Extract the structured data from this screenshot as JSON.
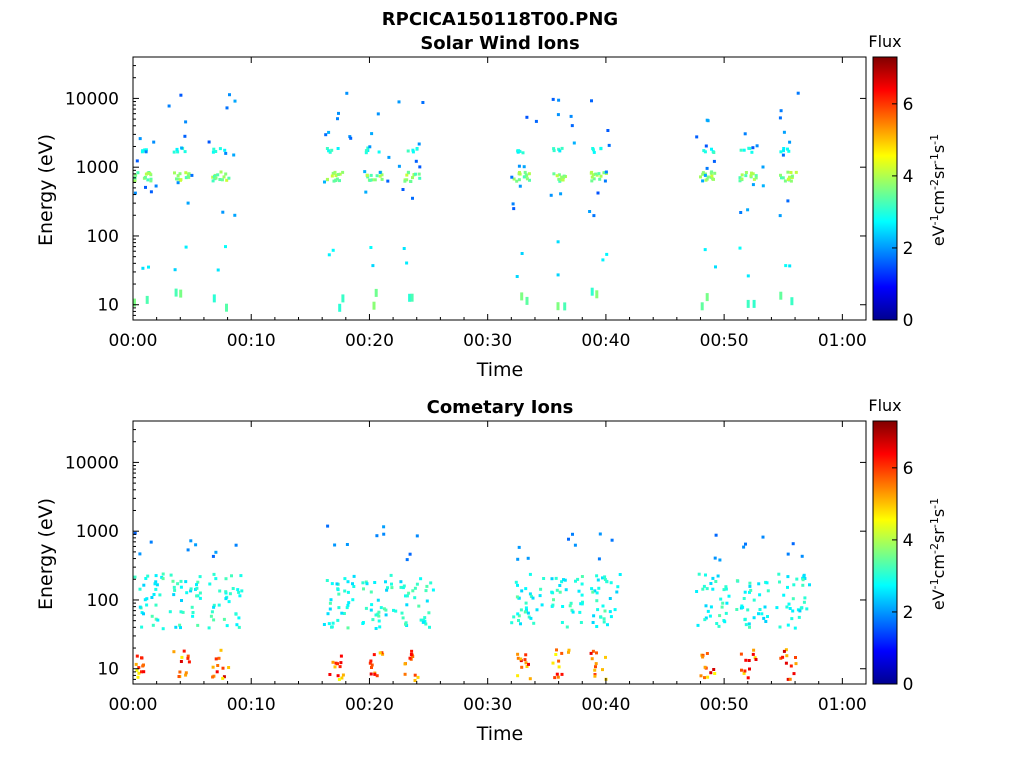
{
  "figure": {
    "title": "RPCICA150118T00.PNG"
  },
  "chart_data": [
    {
      "type": "heatmap",
      "title": "Solar Wind Ions",
      "xlabel": "Time",
      "ylabel": "Energy (eV)",
      "x_ticks": [
        "00:00",
        "00:10",
        "00:20",
        "00:30",
        "00:40",
        "00:50",
        "01:00"
      ],
      "x_range_minutes": [
        0,
        62
      ],
      "y_scale": "log",
      "y_ticks": [
        "10",
        "100",
        "1000",
        "10000"
      ],
      "y_range_eV": [
        6,
        40000
      ],
      "colorbar": {
        "label": "Flux",
        "unit_label": "eV-1cm-2sr-1s-1",
        "ticks": [
          "0",
          "2",
          "4",
          "6"
        ],
        "range": [
          0,
          7.3
        ],
        "colormap": "jet"
      },
      "bursts_minutes": [
        0,
        3.3,
        6.6,
        16.3,
        19.6,
        22.8,
        32.1,
        35.4,
        38.6,
        47.8,
        51.2,
        54.6
      ],
      "band_features": [
        {
          "energy_eV": 750,
          "flux": 3.8,
          "note": "solar wind proton band"
        },
        {
          "energy_eV": 1800,
          "flux": 2.8,
          "note": "solar wind alpha band"
        },
        {
          "energy_eV": 15,
          "flux": 3.2,
          "note": "low energy streaks"
        }
      ]
    },
    {
      "type": "heatmap",
      "title": "Cometary Ions",
      "xlabel": "Time",
      "ylabel": "Energy (eV)",
      "x_ticks": [
        "00:00",
        "00:10",
        "00:20",
        "00:30",
        "00:40",
        "00:50",
        "01:00"
      ],
      "x_range_minutes": [
        0,
        62
      ],
      "y_scale": "log",
      "y_ticks": [
        "10",
        "100",
        "1000",
        "10000"
      ],
      "y_range_eV": [
        6,
        40000
      ],
      "colorbar": {
        "label": "Flux",
        "unit_label": "eV-1cm-2sr-1s-1",
        "ticks": [
          "0",
          "2",
          "4",
          "6"
        ],
        "range": [
          0,
          7.3
        ],
        "colormap": "jet"
      },
      "bursts_minutes": [
        0,
        3.3,
        6.6,
        16.3,
        19.6,
        22.8,
        32.1,
        35.4,
        38.6,
        47.8,
        51.2,
        54.6
      ],
      "band_features": [
        {
          "energy_eV": 12,
          "flux": 5.8,
          "note": "intense low-energy cometary ions"
        },
        {
          "energy_eV": 90,
          "flux": 2.8,
          "note": "scattered mid-energy ions"
        },
        {
          "energy_eV": 700,
          "flux": 1.8,
          "note": "sparse high-energy points"
        }
      ]
    }
  ]
}
